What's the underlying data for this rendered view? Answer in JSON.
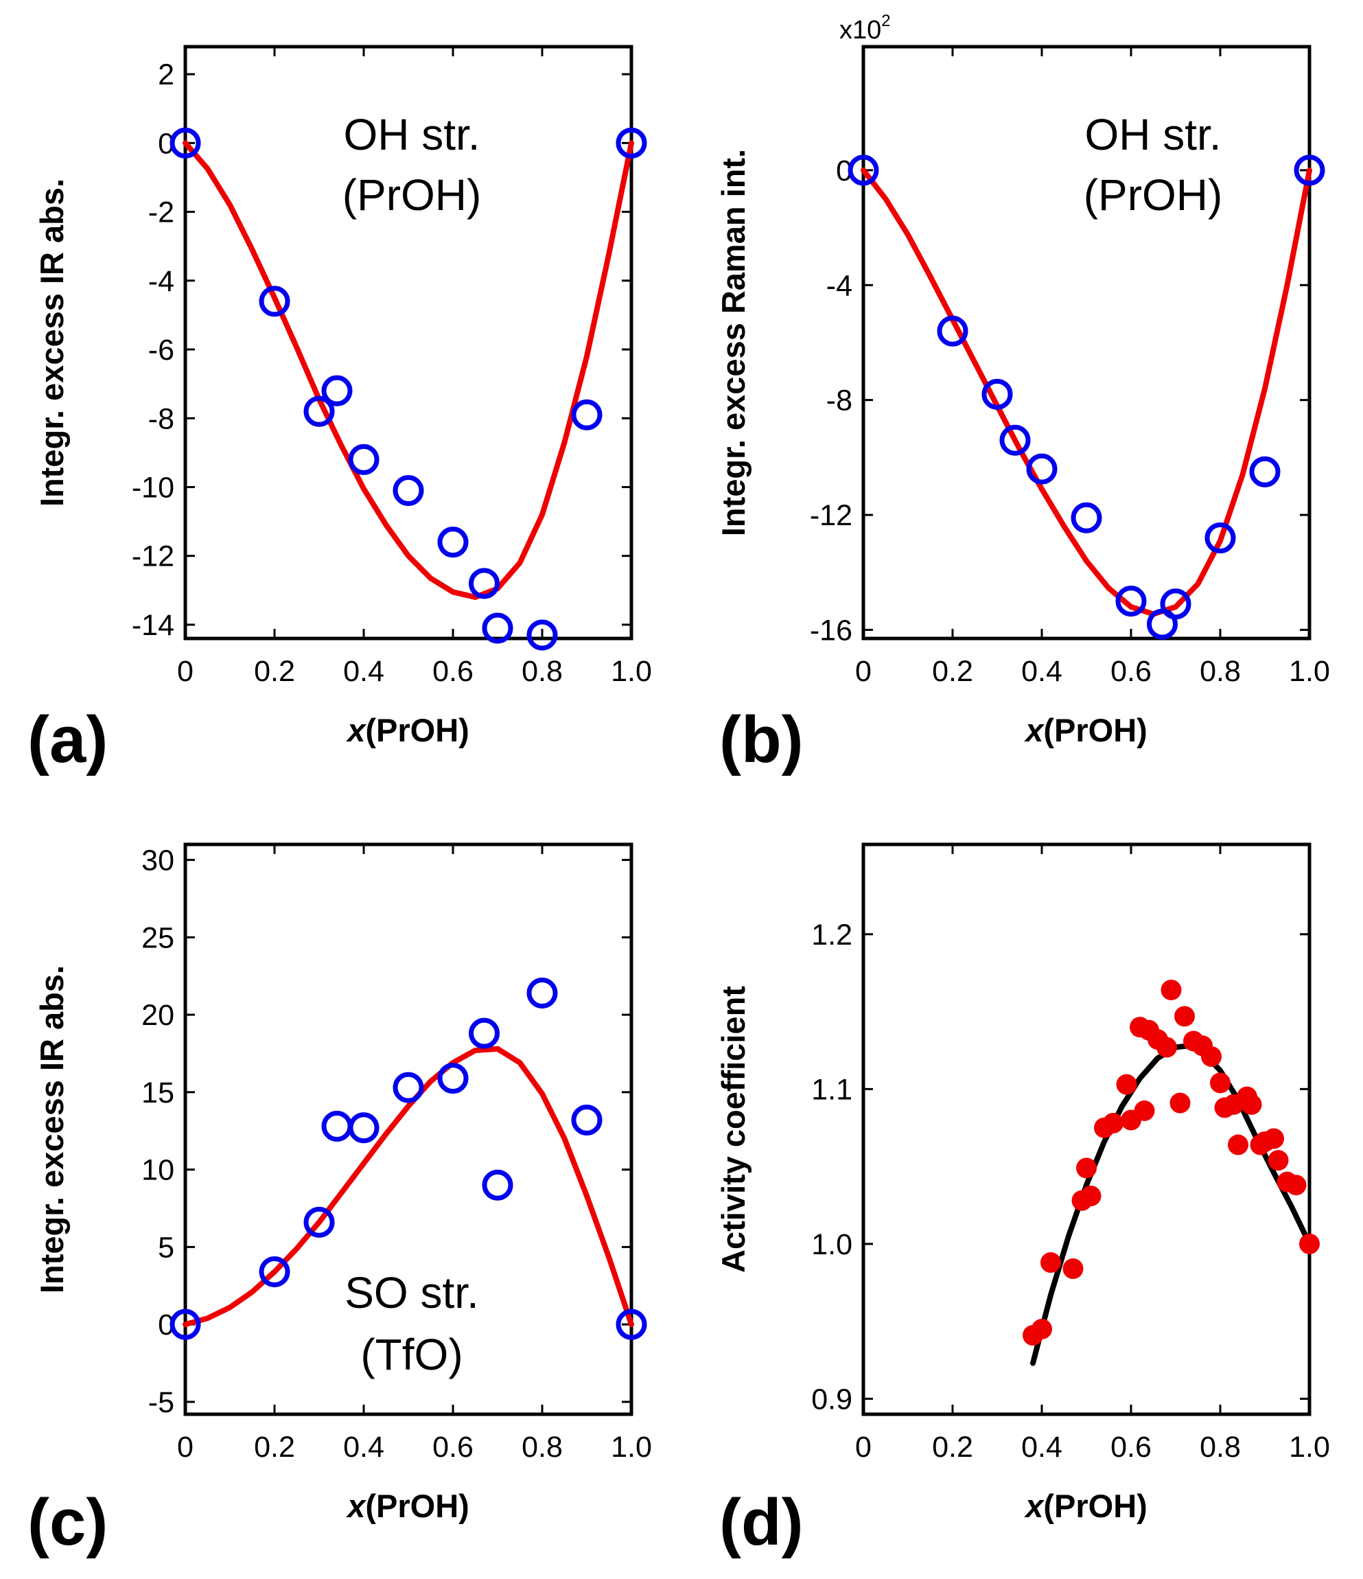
{
  "chart_data": [
    {
      "type": "scatter",
      "panel": "(a)",
      "title": "",
      "annotation": [
        "OH str.",
        "(PrOH)"
      ],
      "xlabel_italic": "x",
      "xlabel": "(PrOH)",
      "ylabel": "Integr. excess IR abs.",
      "xlim": [
        0,
        1.0
      ],
      "ylim": [
        -14.4,
        2.8
      ],
      "xticks": [
        0,
        0.2,
        0.4,
        0.6,
        0.8,
        1.0
      ],
      "xtick_labels": [
        "0",
        "0.2",
        "0.4",
        "0.6",
        "0.8",
        "1.0"
      ],
      "yticks": [
        2,
        0,
        -2,
        -4,
        -6,
        -8,
        -10,
        -12,
        -14
      ],
      "ytick_labels": [
        "2",
        "0",
        "-2",
        "-4",
        "-6",
        "-8",
        "-10",
        "-12",
        "-14"
      ],
      "marker_style": "open-circle",
      "marker_color": "#0000ee",
      "fit_color": "#ee0000",
      "points": [
        [
          0,
          0
        ],
        [
          0.2,
          -4.6
        ],
        [
          0.3,
          -7.8
        ],
        [
          0.34,
          -7.2
        ],
        [
          0.4,
          -9.2
        ],
        [
          0.5,
          -10.1
        ],
        [
          0.6,
          -11.6
        ],
        [
          0.67,
          -12.8
        ],
        [
          0.7,
          -14.1
        ],
        [
          0.8,
          -14.3
        ],
        [
          0.9,
          -7.9
        ],
        [
          1.0,
          0
        ]
      ],
      "fit": [
        [
          0,
          0
        ],
        [
          0.05,
          -0.75
        ],
        [
          0.1,
          -1.8
        ],
        [
          0.15,
          -3.1
        ],
        [
          0.2,
          -4.5
        ],
        [
          0.25,
          -5.95
        ],
        [
          0.3,
          -7.45
        ],
        [
          0.35,
          -8.8
        ],
        [
          0.4,
          -10.05
        ],
        [
          0.45,
          -11.1
        ],
        [
          0.5,
          -12.0
        ],
        [
          0.55,
          -12.65
        ],
        [
          0.6,
          -13.05
        ],
        [
          0.65,
          -13.2
        ],
        [
          0.7,
          -12.95
        ],
        [
          0.75,
          -12.2
        ],
        [
          0.8,
          -10.8
        ],
        [
          0.85,
          -8.7
        ],
        [
          0.9,
          -6.2
        ],
        [
          0.95,
          -3.2
        ],
        [
          1.0,
          0
        ]
      ]
    },
    {
      "type": "scatter",
      "panel": "(b)",
      "title": "",
      "annotation": [
        "OH str.",
        "(PrOH)"
      ],
      "scale_prefix": "x10",
      "scale_exponent": "2",
      "xlabel_italic": "x",
      "xlabel": "(PrOH)",
      "ylabel": "Integr. excess Raman int.",
      "xlim": [
        0,
        1.0
      ],
      "ylim": [
        -16.3,
        4.3
      ],
      "xticks": [
        0,
        0.2,
        0.4,
        0.6,
        0.8,
        1.0
      ],
      "xtick_labels": [
        "0",
        "0.2",
        "0.4",
        "0.6",
        "0.8",
        "1.0"
      ],
      "yticks": [
        0,
        -4,
        -8,
        -12,
        -16
      ],
      "ytick_labels": [
        "0",
        "-4",
        "-8",
        "-12",
        "-16"
      ],
      "marker_style": "open-circle",
      "marker_color": "#0000ee",
      "fit_color": "#ee0000",
      "points": [
        [
          0,
          0
        ],
        [
          0.2,
          -5.6
        ],
        [
          0.3,
          -7.8
        ],
        [
          0.34,
          -9.4
        ],
        [
          0.4,
          -10.4
        ],
        [
          0.5,
          -12.1
        ],
        [
          0.6,
          -15.0
        ],
        [
          0.67,
          -15.8
        ],
        [
          0.7,
          -15.1
        ],
        [
          0.8,
          -12.8
        ],
        [
          0.9,
          -10.5
        ],
        [
          1.0,
          0
        ]
      ],
      "fit": [
        [
          0,
          0
        ],
        [
          0.05,
          -1.0
        ],
        [
          0.1,
          -2.25
        ],
        [
          0.15,
          -3.7
        ],
        [
          0.2,
          -5.2
        ],
        [
          0.25,
          -6.7
        ],
        [
          0.3,
          -8.2
        ],
        [
          0.35,
          -9.7
        ],
        [
          0.4,
          -11.1
        ],
        [
          0.45,
          -12.4
        ],
        [
          0.5,
          -13.6
        ],
        [
          0.55,
          -14.55
        ],
        [
          0.6,
          -15.2
        ],
        [
          0.65,
          -15.45
        ],
        [
          0.7,
          -15.2
        ],
        [
          0.75,
          -14.4
        ],
        [
          0.8,
          -12.9
        ],
        [
          0.85,
          -10.6
        ],
        [
          0.9,
          -7.6
        ],
        [
          0.95,
          -4.0
        ],
        [
          1.0,
          0
        ]
      ]
    },
    {
      "type": "scatter",
      "panel": "(c)",
      "title": "",
      "annotation": [
        "SO str.",
        "(TfO)"
      ],
      "xlabel_italic": "x",
      "xlabel": "(PrOH)",
      "ylabel": "Integr. excess IR abs.",
      "xlim": [
        0,
        1.0
      ],
      "ylim": [
        -5.8,
        31.0
      ],
      "xticks": [
        0,
        0.2,
        0.4,
        0.6,
        0.8,
        1.0
      ],
      "xtick_labels": [
        "0",
        "0.2",
        "0.4",
        "0.6",
        "0.8",
        "1.0"
      ],
      "yticks": [
        30,
        25,
        20,
        15,
        10,
        5,
        0,
        -5
      ],
      "ytick_labels": [
        "30",
        "25",
        "20",
        "15",
        "10",
        "5",
        "0",
        "-5"
      ],
      "marker_style": "open-circle",
      "marker_color": "#0000ee",
      "fit_color": "#ee0000",
      "points": [
        [
          0,
          0
        ],
        [
          0.2,
          3.4
        ],
        [
          0.3,
          6.6
        ],
        [
          0.34,
          12.8
        ],
        [
          0.4,
          12.7
        ],
        [
          0.5,
          15.3
        ],
        [
          0.6,
          15.9
        ],
        [
          0.67,
          18.8
        ],
        [
          0.7,
          9.0
        ],
        [
          0.8,
          21.4
        ],
        [
          0.9,
          13.2
        ],
        [
          1.0,
          0
        ]
      ],
      "fit": [
        [
          0,
          0
        ],
        [
          0.05,
          0.4
        ],
        [
          0.1,
          1.1
        ],
        [
          0.15,
          2.1
        ],
        [
          0.2,
          3.4
        ],
        [
          0.25,
          4.9
        ],
        [
          0.3,
          6.6
        ],
        [
          0.35,
          8.5
        ],
        [
          0.4,
          10.4
        ],
        [
          0.45,
          12.3
        ],
        [
          0.5,
          14.1
        ],
        [
          0.55,
          15.7
        ],
        [
          0.6,
          16.9
        ],
        [
          0.65,
          17.7
        ],
        [
          0.7,
          17.8
        ],
        [
          0.75,
          16.9
        ],
        [
          0.8,
          14.9
        ],
        [
          0.85,
          12.0
        ],
        [
          0.9,
          8.3
        ],
        [
          0.95,
          4.3
        ],
        [
          1.0,
          0
        ]
      ]
    },
    {
      "type": "scatter",
      "panel": "(d)",
      "title": "",
      "xlabel_italic": "x",
      "xlabel": "(PrOH)",
      "ylabel": "Activity coefficient",
      "xlim": [
        0,
        1.0
      ],
      "ylim": [
        0.89,
        1.258
      ],
      "xticks": [
        0,
        0.2,
        0.4,
        0.6,
        0.8,
        1.0
      ],
      "xtick_labels": [
        "0",
        "0.2",
        "0.4",
        "0.6",
        "0.8",
        "1.0"
      ],
      "yticks": [
        1.2,
        1.1,
        1.0,
        0.9
      ],
      "ytick_labels": [
        "1.2",
        "1.1",
        "1.0",
        "0.9"
      ],
      "marker_style": "filled-circle",
      "marker_color": "#ee0000",
      "fit_color": "#000000",
      "points": [
        [
          0.38,
          0.941
        ],
        [
          0.4,
          0.945
        ],
        [
          0.42,
          0.988
        ],
        [
          0.47,
          0.984
        ],
        [
          0.49,
          1.028
        ],
        [
          0.5,
          1.049
        ],
        [
          0.51,
          1.031
        ],
        [
          0.54,
          1.075
        ],
        [
          0.56,
          1.078
        ],
        [
          0.59,
          1.103
        ],
        [
          0.6,
          1.08
        ],
        [
          0.62,
          1.14
        ],
        [
          0.63,
          1.086
        ],
        [
          0.64,
          1.138
        ],
        [
          0.66,
          1.132
        ],
        [
          0.68,
          1.127
        ],
        [
          0.69,
          1.164
        ],
        [
          0.71,
          1.091
        ],
        [
          0.72,
          1.147
        ],
        [
          0.74,
          1.131
        ],
        [
          0.76,
          1.128
        ],
        [
          0.78,
          1.121
        ],
        [
          0.8,
          1.104
        ],
        [
          0.81,
          1.088
        ],
        [
          0.83,
          1.09
        ],
        [
          0.84,
          1.064
        ],
        [
          0.86,
          1.095
        ],
        [
          0.87,
          1.09
        ],
        [
          0.89,
          1.064
        ],
        [
          0.9,
          1.066
        ],
        [
          0.92,
          1.068
        ],
        [
          0.93,
          1.054
        ],
        [
          0.95,
          1.04
        ],
        [
          0.97,
          1.038
        ],
        [
          1.0,
          1.0
        ]
      ],
      "fit": [
        [
          0.38,
          0.923
        ],
        [
          0.42,
          0.967
        ],
        [
          0.46,
          1.005
        ],
        [
          0.5,
          1.038
        ],
        [
          0.54,
          1.066
        ],
        [
          0.58,
          1.089
        ],
        [
          0.62,
          1.107
        ],
        [
          0.66,
          1.12
        ],
        [
          0.7,
          1.127
        ],
        [
          0.73,
          1.128
        ],
        [
          0.76,
          1.124
        ],
        [
          0.8,
          1.112
        ],
        [
          0.84,
          1.093
        ],
        [
          0.88,
          1.069
        ],
        [
          0.92,
          1.046
        ],
        [
          0.96,
          1.024
        ],
        [
          1.0,
          1.0
        ]
      ]
    }
  ]
}
